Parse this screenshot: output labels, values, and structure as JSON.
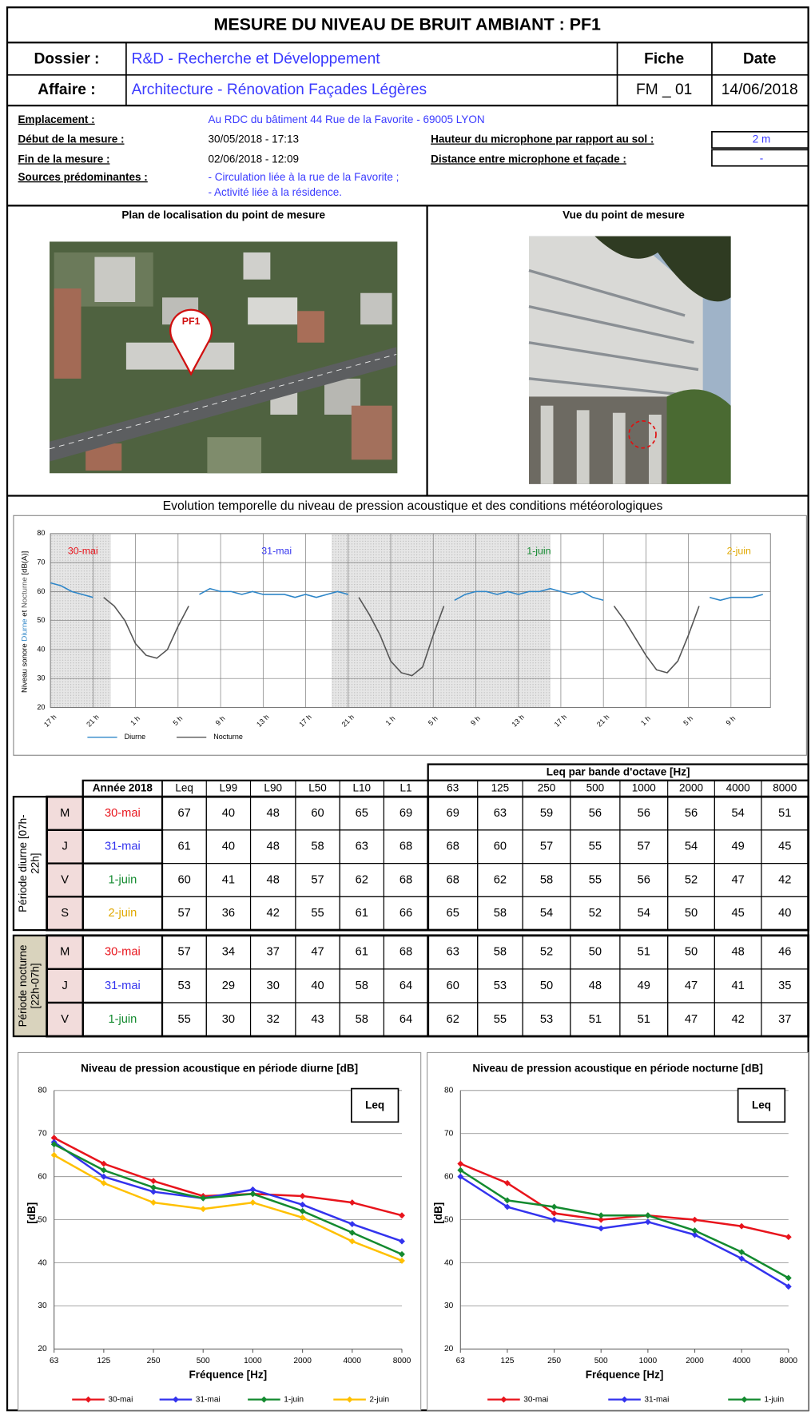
{
  "header": {
    "title": "MESURE DU NIVEAU DE BRUIT AMBIANT : PF1",
    "dossier_label": "Dossier :",
    "dossier": "R&D - Recherche et Développement",
    "fiche_label": "Fiche",
    "date_label": "Date",
    "affaire_label": "Affaire :",
    "affaire": "Architecture - Rénovation Façades Légères",
    "fiche": "FM _ 01",
    "date": "14/06/2018"
  },
  "info": {
    "emplacement_label": "Emplacement :",
    "emplacement": "Au RDC du bâtiment 44 Rue de la Favorite - 69005 LYON",
    "debut_label": "Début de la mesure :",
    "debut": "30/05/2018 - 17:13",
    "fin_label": "Fin de la mesure :",
    "fin": "02/06/2018 - 12:09",
    "sources_label": "Sources prédominantes :",
    "sources": [
      "- Circulation liée à la rue de la Favorite ;",
      "- Activité liée à la résidence."
    ],
    "hauteur_label": "Hauteur du microphone par rapport au sol :",
    "hauteur": "2 m",
    "distance_label": "Distance entre microphone et façade :",
    "distance": "-"
  },
  "photos": {
    "plan_title": "Plan de localisation du point de mesure",
    "vue_title": "Vue du point de mesure",
    "marker": "PF1"
  },
  "table": {
    "year_label": "Année  2018",
    "columns": [
      "Leq",
      "L99",
      "L90",
      "L50",
      "L10",
      "L1"
    ],
    "octave_title": "Leq par bande d'octave [Hz]",
    "octaves": [
      "63",
      "125",
      "250",
      "500",
      "1000",
      "2000",
      "4000",
      "8000"
    ],
    "date_colors": {
      "30-mai": "#e8141c",
      "31-mai": "#3333ee",
      "1-juin": "#138a2f",
      "2-juin": "#e0a800"
    },
    "groups": [
      {
        "label": [
          "Période diurne [07h-",
          "22h]"
        ],
        "rows": [
          {
            "day": "M",
            "date": "30-mai",
            "values": [
              67,
              40,
              48,
              60,
              65,
              69,
              69,
              63,
              59,
              56,
              56,
              56,
              54,
              51
            ]
          },
          {
            "day": "J",
            "date": "31-mai",
            "values": [
              61,
              40,
              48,
              58,
              63,
              68,
              68,
              60,
              57,
              55,
              57,
              54,
              49,
              45
            ]
          },
          {
            "day": "V",
            "date": "1-juin",
            "values": [
              60,
              41,
              48,
              57,
              62,
              68,
              68,
              62,
              58,
              55,
              56,
              52,
              47,
              42
            ]
          },
          {
            "day": "S",
            "date": "2-juin",
            "values": [
              57,
              36,
              42,
              55,
              61,
              66,
              65,
              58,
              54,
              52,
              54,
              50,
              45,
              40
            ]
          }
        ]
      },
      {
        "label": [
          "Période nocturne",
          "[22h-07h]"
        ],
        "rows": [
          {
            "day": "M",
            "date": "30-mai",
            "values": [
              57,
              34,
              37,
              47,
              61,
              68,
              63,
              58,
              52,
              50,
              51,
              50,
              48,
              46
            ]
          },
          {
            "day": "J",
            "date": "31-mai",
            "values": [
              53,
              29,
              30,
              40,
              58,
              64,
              60,
              53,
              50,
              48,
              49,
              47,
              41,
              35
            ]
          },
          {
            "day": "V",
            "date": "1-juin",
            "values": [
              55,
              30,
              32,
              43,
              58,
              64,
              62,
              55,
              53,
              51,
              51,
              47,
              42,
              37
            ]
          }
        ]
      }
    ]
  },
  "chart_data": [
    {
      "type": "line",
      "title": "Evolution temporelle du niveau de pression acoustique et des conditions météorologiques",
      "ylabel_parts": [
        "Niveau sonore ",
        "Diurne",
        " et ",
        "Nocturne",
        " [dB(A)]"
      ],
      "ylim": [
        20,
        80
      ],
      "yticks": [
        20,
        30,
        40,
        50,
        60,
        70,
        80
      ],
      "grid": true,
      "categories": [
        "17 h",
        null,
        null,
        null,
        "21 h",
        null,
        null,
        null,
        "1 h",
        null,
        null,
        null,
        "5 h",
        null,
        null,
        null,
        "9 h",
        null,
        null,
        null,
        "13 h",
        null,
        null,
        null,
        "17 h",
        null,
        null,
        null,
        "21 h",
        null,
        null,
        null,
        "1 h",
        null,
        null,
        null,
        "5 h",
        null,
        null,
        null,
        "9 h",
        null,
        null,
        null,
        "13 h",
        null,
        null,
        null,
        "17 h",
        null,
        null,
        null,
        "21 h",
        null,
        null,
        null,
        "1 h",
        null,
        null,
        null,
        "5 h",
        null,
        null,
        null,
        "9 h",
        null,
        null,
        null
      ],
      "annotations": [
        {
          "text": "30-mai",
          "color": "#e8141c"
        },
        {
          "text": "31-mai",
          "color": "#3333ee"
        },
        {
          "text": "1-juin",
          "color": "#138a2f"
        },
        {
          "text": "2-juin",
          "color": "#e0a800"
        }
      ],
      "series": [
        {
          "name": "Diurne",
          "color": "#2e86c8",
          "values": [
            63,
            62,
            60,
            59,
            58,
            null,
            null,
            null,
            null,
            null,
            null,
            null,
            null,
            null,
            59,
            61,
            60,
            60,
            59,
            60,
            59,
            59,
            59,
            58,
            59,
            58,
            59,
            60,
            59,
            null,
            null,
            null,
            null,
            null,
            null,
            null,
            null,
            null,
            57,
            59,
            60,
            60,
            59,
            60,
            59,
            60,
            60,
            61,
            60,
            59,
            60,
            58,
            57,
            null,
            null,
            null,
            null,
            null,
            null,
            null,
            null,
            null,
            58,
            57,
            58,
            58,
            58,
            59
          ]
        },
        {
          "name": "Nocturne",
          "color": "#555555",
          "values": [
            null,
            null,
            null,
            null,
            null,
            58,
            55,
            50,
            42,
            38,
            37,
            40,
            48,
            55,
            null,
            null,
            null,
            null,
            null,
            null,
            null,
            null,
            null,
            null,
            null,
            null,
            null,
            null,
            null,
            58,
            52,
            45,
            36,
            32,
            31,
            34,
            45,
            55,
            null,
            null,
            null,
            null,
            null,
            null,
            null,
            null,
            null,
            null,
            null,
            null,
            null,
            null,
            null,
            55,
            50,
            44,
            38,
            33,
            32,
            36,
            45,
            55,
            null,
            null,
            null,
            null,
            null,
            null
          ]
        }
      ]
    },
    {
      "type": "line",
      "title": "Niveau de pression acoustique en période diurne [dB]",
      "annotation": "Leq",
      "xlabel": "Fréquence [Hz]",
      "ylabel": "[dB]",
      "categories": [
        "63",
        "125",
        "250",
        "500",
        "1000",
        "2000",
        "4000",
        "8000"
      ],
      "ylim": [
        20,
        80
      ],
      "yticks": [
        20,
        30,
        40,
        50,
        60,
        70,
        80
      ],
      "grid": true,
      "series": [
        {
          "name": "30-mai",
          "color": "#e8141c",
          "values": [
            69,
            63,
            59,
            55.5,
            56,
            55.5,
            54,
            51
          ]
        },
        {
          "name": "31-mai",
          "color": "#3333ee",
          "values": [
            68,
            60,
            56.5,
            55,
            57,
            53.5,
            49,
            45
          ]
        },
        {
          "name": "1-juin",
          "color": "#138a2f",
          "values": [
            67.5,
            61.5,
            57.5,
            55,
            56,
            52,
            47,
            42
          ]
        },
        {
          "name": "2-juin",
          "color": "#ffc000",
          "values": [
            65,
            58.5,
            54,
            52.5,
            54,
            50.5,
            45,
            40.5
          ]
        }
      ]
    },
    {
      "type": "line",
      "title": "Niveau de pression acoustique en période nocturne [dB]",
      "annotation": "Leq",
      "xlabel": "Fréquence [Hz]",
      "ylabel": "[dB]",
      "categories": [
        "63",
        "125",
        "250",
        "500",
        "1000",
        "2000",
        "4000",
        "8000"
      ],
      "ylim": [
        20,
        80
      ],
      "yticks": [
        20,
        30,
        40,
        50,
        60,
        70,
        80
      ],
      "grid": true,
      "series": [
        {
          "name": "30-mai",
          "color": "#e8141c",
          "values": [
            63,
            58.5,
            51.5,
            50,
            51,
            50,
            48.5,
            46
          ]
        },
        {
          "name": "31-mai",
          "color": "#3333ee",
          "values": [
            60,
            53,
            50,
            48,
            49.5,
            46.5,
            41,
            34.5
          ]
        },
        {
          "name": "1-juin",
          "color": "#138a2f",
          "values": [
            61.5,
            54.5,
            53,
            51,
            51,
            47.5,
            42.5,
            36.5
          ]
        }
      ]
    }
  ]
}
